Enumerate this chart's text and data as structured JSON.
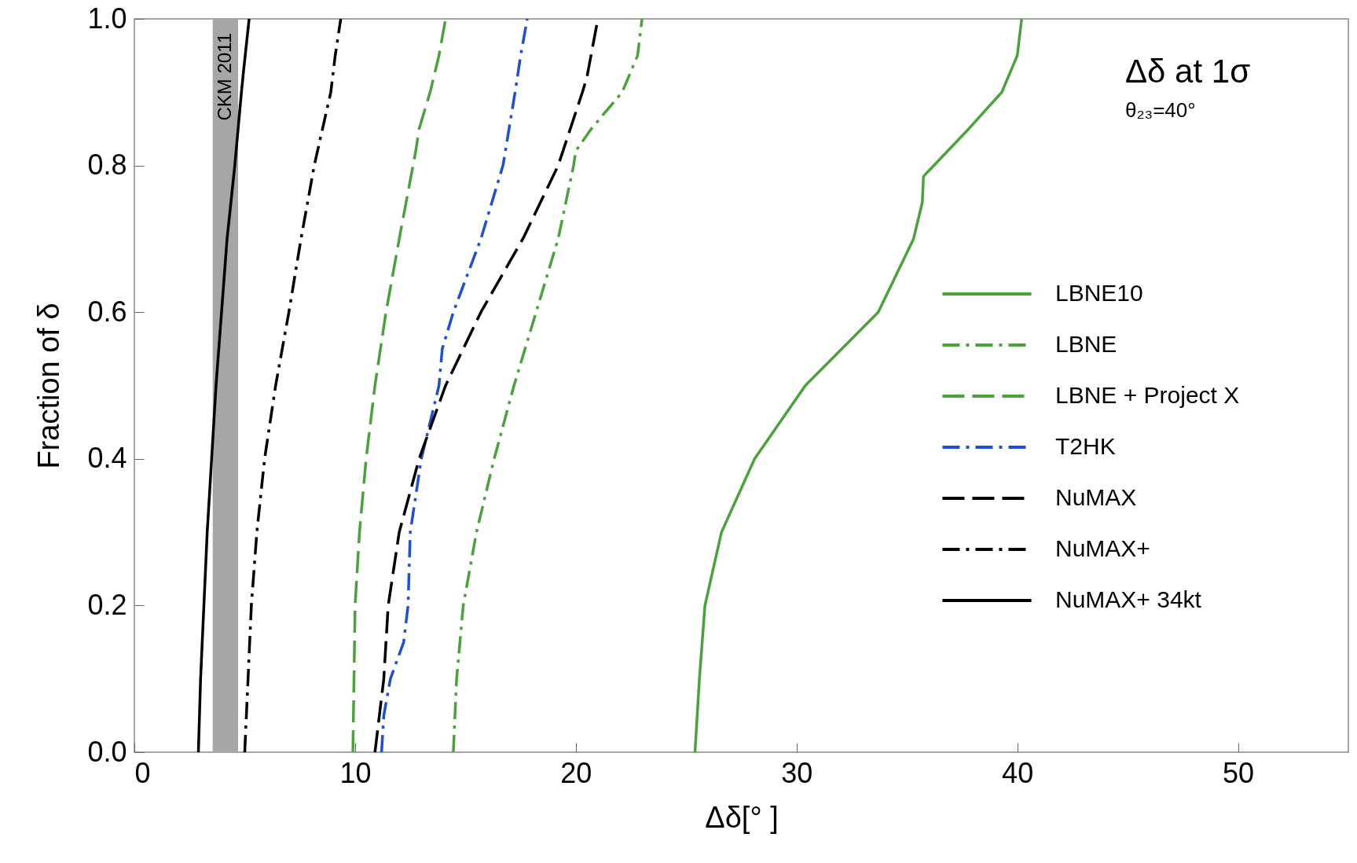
{
  "chart_data": {
    "type": "line",
    "title": "Δδ at 1σ",
    "subtitle": "θ₂₃=40°",
    "xlabel": "Δδ[° ]",
    "ylabel": "Fraction of δ",
    "xlim": [
      0,
      55
    ],
    "xticks": [
      0,
      10,
      20,
      30,
      40,
      50
    ],
    "ylim": [
      0,
      1
    ],
    "yticks": [
      {
        "value": 0,
        "label": "0.0"
      },
      0.2,
      0.4,
      0.6,
      0.8,
      {
        "value": 1,
        "label": "1.0"
      }
    ],
    "grid": false,
    "legend": "right",
    "marker": "none",
    "bands": [
      {
        "axis": "x",
        "from": 3.55,
        "to": 4.7,
        "label": "CKM 2011",
        "color": "#a6a6a6"
      }
    ],
    "series": [
      {
        "name": "LBNE10",
        "color": "#4aa23a",
        "line_style": "solid",
        "x": [
          25.4,
          25.6,
          25.85,
          26.6,
          28.1,
          30.4,
          33.7,
          35.3,
          35.7,
          35.75,
          35.9,
          37.8,
          39.3,
          40.0,
          40.2
        ],
        "values": [
          0,
          0.1,
          0.2,
          0.3,
          0.4,
          0.5,
          0.6,
          0.7,
          0.75,
          0.785,
          0.79,
          0.85,
          0.9,
          0.95,
          1.0
        ]
      },
      {
        "name": "LBNE",
        "color": "#4aa23a",
        "line_style": "dashdot",
        "x": [
          14.45,
          14.6,
          14.9,
          15.5,
          16.3,
          17.2,
          18.2,
          19.2,
          19.9,
          20.0,
          20.7,
          22.1,
          22.8,
          23.0
        ],
        "values": [
          0,
          0.1,
          0.2,
          0.3,
          0.4,
          0.5,
          0.6,
          0.7,
          0.8,
          0.82,
          0.85,
          0.9,
          0.95,
          1.0
        ]
      },
      {
        "name": "LBNE + Project X",
        "color": "#4aa23a",
        "line_style": "dashed",
        "x": [
          9.9,
          9.95,
          10.0,
          10.2,
          10.5,
          10.9,
          11.4,
          12.0,
          12.75,
          12.9,
          13.4,
          13.8,
          14.1
        ],
        "values": [
          0,
          0.1,
          0.2,
          0.3,
          0.4,
          0.5,
          0.6,
          0.7,
          0.82,
          0.85,
          0.9,
          0.95,
          1.0
        ]
      },
      {
        "name": "T2HK",
        "color": "#1f4fd8",
        "line_style": "dashdot",
        "x": [
          11.2,
          11.3,
          11.6,
          12.2,
          12.4,
          12.5,
          13.0,
          13.8,
          13.95,
          14.45,
          15.7,
          16.7,
          17.25,
          17.5,
          17.8
        ],
        "values": [
          0,
          0.05,
          0.1,
          0.15,
          0.2,
          0.3,
          0.4,
          0.5,
          0.55,
          0.6,
          0.7,
          0.8,
          0.9,
          0.95,
          1.0
        ]
      },
      {
        "name": "NuMAX",
        "color": "#000000",
        "line_style": "dashed",
        "x": [
          10.9,
          11.1,
          11.3,
          11.5,
          12.0,
          12.9,
          14.1,
          15.7,
          17.6,
          19.2,
          20.3,
          20.5,
          21.0
        ],
        "values": [
          0,
          0.05,
          0.1,
          0.2,
          0.3,
          0.4,
          0.5,
          0.6,
          0.7,
          0.8,
          0.9,
          0.92,
          1.0
        ]
      },
      {
        "name": "NuMAX+",
        "color": "#000000",
        "line_style": "dashdot",
        "x": [
          5.0,
          5.15,
          5.3,
          5.55,
          5.9,
          6.4,
          7.0,
          7.55,
          8.15,
          8.9,
          9.1,
          9.35
        ],
        "values": [
          0,
          0.1,
          0.2,
          0.3,
          0.4,
          0.5,
          0.6,
          0.7,
          0.8,
          0.9,
          0.95,
          1.0
        ]
      },
      {
        "name": "NuMAX+ 34kt",
        "color": "#000000",
        "line_style": "solid",
        "x": [
          2.9,
          3.0,
          3.15,
          3.3,
          3.5,
          3.7,
          3.95,
          4.2,
          4.55,
          4.85,
          4.95,
          5.2
        ],
        "values": [
          0,
          0.1,
          0.2,
          0.3,
          0.4,
          0.5,
          0.6,
          0.7,
          0.8,
          0.9,
          0.93,
          1.0
        ]
      }
    ]
  }
}
